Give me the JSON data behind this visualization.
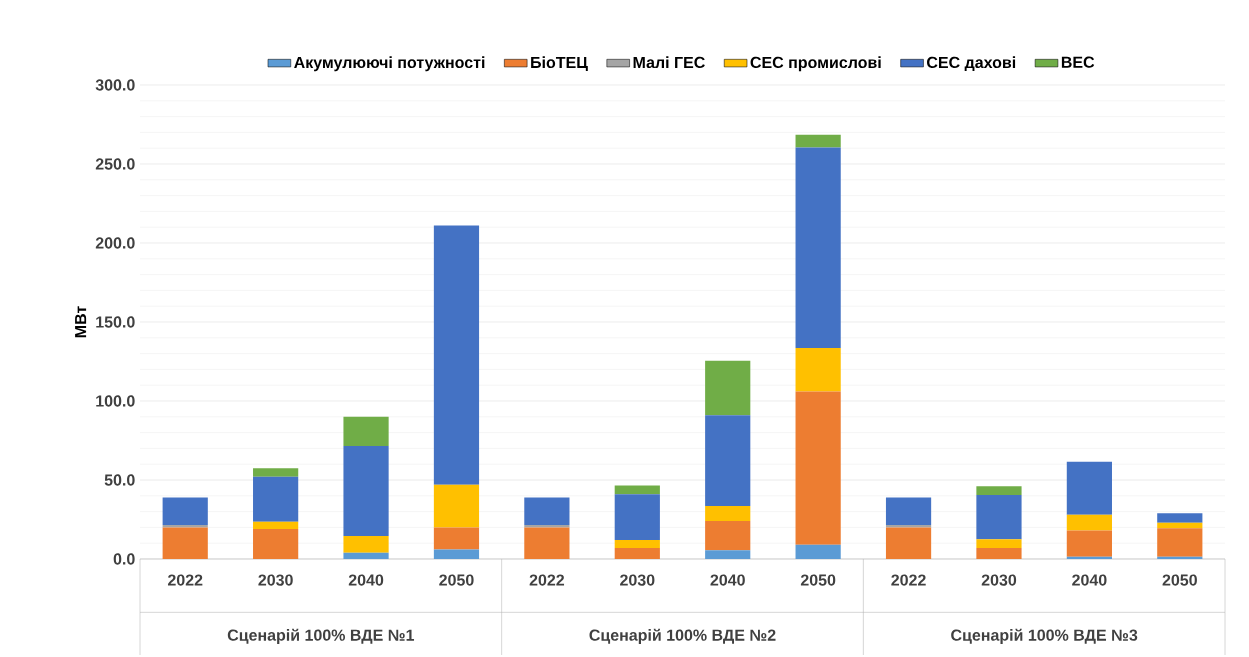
{
  "chart_data": {
    "type": "bar",
    "stacked": true,
    "ylabel": "МВт",
    "categories": [
      "2022",
      "2030",
      "2040",
      "2050",
      "2022",
      "2030",
      "2040",
      "2050",
      "2022",
      "2030",
      "2040",
      "2050"
    ],
    "annotations": [
      "Сценарій 100% ВДЕ №1",
      "Сценарій 100% ВДЕ №2",
      "Сценарій 100% ВДЕ №3"
    ],
    "series": [
      {
        "name": "Акумулюючі потужності",
        "color": "#5b9bd5",
        "values": [
          0,
          0,
          4,
          6,
          0,
          0,
          5.5,
          9,
          0,
          0,
          1.5,
          1.5
        ]
      },
      {
        "name": "БіоТЕЦ",
        "color": "#ed7d31",
        "values": [
          20,
          19,
          0,
          14,
          20,
          7,
          18.5,
          97,
          20,
          7,
          16.5,
          18
        ]
      },
      {
        "name": "Малі ГЕС",
        "color": "#a5a5a5",
        "values": [
          1.5,
          0,
          0,
          0,
          1.5,
          0,
          0,
          0,
          1.5,
          0,
          0,
          0
        ]
      },
      {
        "name": "СЕС промислові",
        "color": "#ffc000",
        "values": [
          0,
          4.5,
          10.5,
          27,
          0,
          5,
          9.5,
          27.5,
          0,
          5.5,
          10,
          3.5
        ]
      },
      {
        "name": "СЕС дахові",
        "color": "#4472c4",
        "values": [
          17.5,
          28.5,
          57,
          164,
          17.5,
          29,
          57.5,
          127,
          17.5,
          28,
          33.5,
          6
        ]
      },
      {
        "name": "ВЕС",
        "color": "#70ad47",
        "values": [
          0,
          5.5,
          18.5,
          0,
          0,
          5.5,
          34.5,
          8,
          0,
          5.5,
          0,
          0
        ]
      }
    ],
    "ylim": [
      0,
      300
    ],
    "yticks": [
      {
        "value": 0,
        "label": "0.0"
      },
      {
        "value": 50,
        "label": "50.0"
      },
      {
        "value": 100,
        "label": "100.0"
      },
      {
        "value": 150,
        "label": "150.0"
      },
      {
        "value": 200,
        "label": "200.0"
      },
      {
        "value": 250,
        "label": "250.0"
      },
      {
        "value": 300,
        "label": "300.0"
      }
    ],
    "grid": "y",
    "legend": "top"
  }
}
